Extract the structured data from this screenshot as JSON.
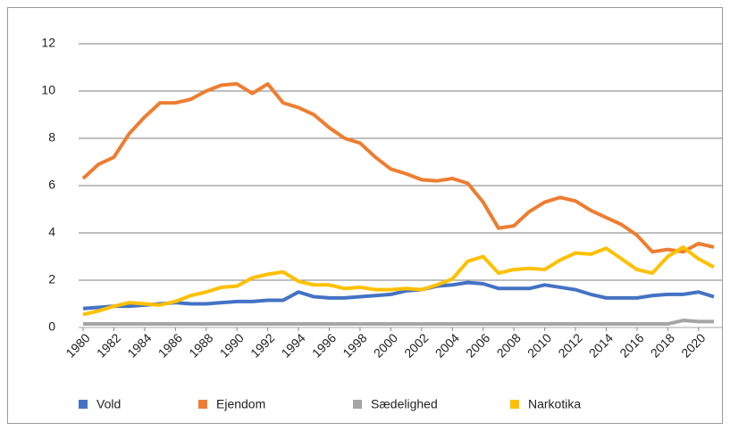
{
  "chart_data": {
    "type": "line",
    "x": [
      1980,
      1981,
      1982,
      1983,
      1984,
      1985,
      1986,
      1987,
      1988,
      1989,
      1990,
      1991,
      1992,
      1993,
      1994,
      1995,
      1996,
      1997,
      1998,
      1999,
      2000,
      2001,
      2002,
      2003,
      2004,
      2005,
      2006,
      2007,
      2008,
      2009,
      2010,
      2011,
      2012,
      2013,
      2014,
      2015,
      2016,
      2017,
      2018,
      2019,
      2020,
      2021
    ],
    "series": [
      {
        "name": "Vold",
        "color": "#4472c4",
        "values": [
          0.8,
          0.85,
          0.9,
          0.9,
          0.95,
          1.0,
          1.05,
          1.0,
          1.0,
          1.05,
          1.1,
          1.1,
          1.15,
          1.15,
          1.5,
          1.3,
          1.25,
          1.25,
          1.3,
          1.35,
          1.4,
          1.55,
          1.6,
          1.75,
          1.8,
          1.9,
          1.85,
          1.65,
          1.65,
          1.65,
          1.8,
          1.7,
          1.6,
          1.4,
          1.25,
          1.25,
          1.25,
          1.35,
          1.4,
          1.4,
          1.5,
          1.3
        ]
      },
      {
        "name": "Ejendom",
        "color": "#ed7d31",
        "values": [
          6.3,
          6.9,
          7.2,
          8.2,
          8.9,
          9.5,
          9.5,
          9.65,
          10.0,
          10.25,
          10.3,
          9.9,
          10.3,
          9.5,
          9.3,
          9.0,
          8.45,
          8.0,
          7.8,
          7.2,
          6.7,
          6.5,
          6.25,
          6.2,
          6.3,
          6.1,
          5.3,
          4.2,
          4.3,
          4.9,
          5.3,
          5.5,
          5.35,
          4.95,
          4.65,
          4.35,
          3.9,
          3.2,
          3.3,
          3.2,
          3.55,
          3.4
        ]
      },
      {
        "name": "Sædelighed",
        "color": "#a5a5a5",
        "values": [
          0.15,
          0.15,
          0.15,
          0.15,
          0.15,
          0.15,
          0.15,
          0.15,
          0.15,
          0.15,
          0.15,
          0.15,
          0.15,
          0.15,
          0.15,
          0.15,
          0.15,
          0.15,
          0.15,
          0.15,
          0.15,
          0.15,
          0.15,
          0.15,
          0.15,
          0.15,
          0.15,
          0.15,
          0.15,
          0.15,
          0.15,
          0.15,
          0.15,
          0.15,
          0.15,
          0.15,
          0.15,
          0.15,
          0.15,
          0.3,
          0.25,
          0.25
        ]
      },
      {
        "name": "Narkotika",
        "color": "#ffc000",
        "values": [
          0.55,
          0.7,
          0.9,
          1.05,
          1.0,
          0.95,
          1.1,
          1.35,
          1.5,
          1.7,
          1.75,
          2.1,
          2.25,
          2.35,
          1.95,
          1.8,
          1.8,
          1.65,
          1.7,
          1.6,
          1.6,
          1.65,
          1.6,
          1.8,
          2.05,
          2.8,
          3.0,
          2.3,
          2.45,
          2.5,
          2.45,
          2.85,
          3.15,
          3.1,
          3.35,
          2.9,
          2.45,
          2.3,
          3.0,
          3.4,
          2.9,
          2.55
        ]
      }
    ],
    "xlim": [
      1980,
      2021
    ],
    "xticks": [
      1980,
      1982,
      1984,
      1986,
      1988,
      1990,
      1992,
      1994,
      1996,
      1998,
      2000,
      2002,
      2004,
      2006,
      2008,
      2010,
      2012,
      2014,
      2016,
      2018,
      2020
    ],
    "ylim": [
      0,
      12
    ],
    "yticks": [
      0,
      2,
      4,
      6,
      8,
      10,
      12
    ],
    "grid": true,
    "legend": "bottom"
  }
}
